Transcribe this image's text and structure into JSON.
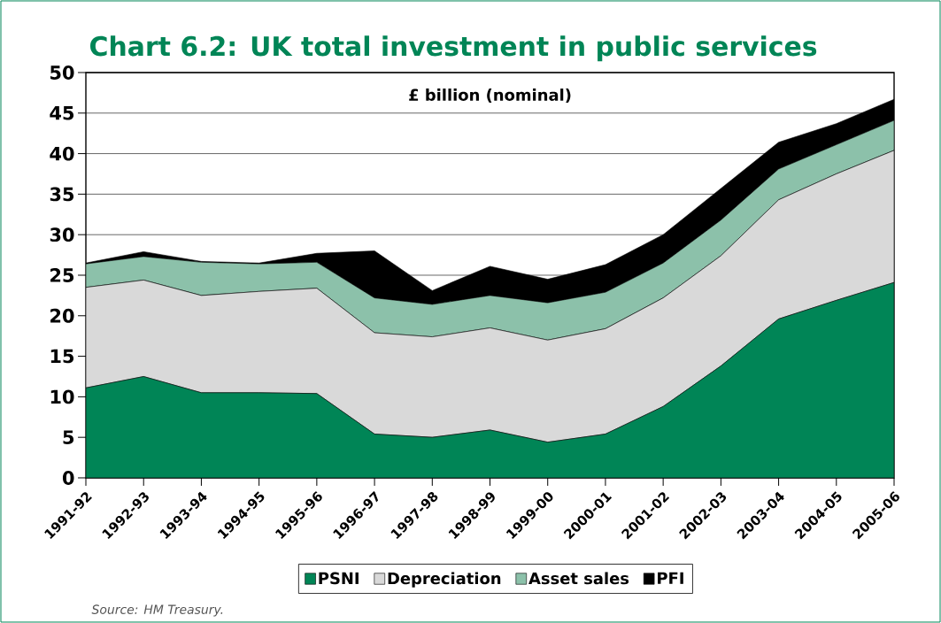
{
  "chart_data": {
    "type": "area",
    "stacked": true,
    "title": "Chart 6.2: UK total investment in public services",
    "ylabel": "£ billion (nominal)",
    "categories": [
      "1991-92",
      "1992-93",
      "1993-94",
      "1994-95",
      "1995-96",
      "1996-97",
      "1997-98",
      "1998-99",
      "1999-00",
      "2000-01",
      "2001-02",
      "2002-03",
      "2003-04",
      "2004-05",
      "2005-06"
    ],
    "series": [
      {
        "name": "PSNI",
        "color": "#008556",
        "values": [
          11.1,
          12.5,
          10.5,
          10.5,
          10.4,
          5.4,
          5.0,
          5.9,
          4.4,
          5.4,
          8.8,
          13.8,
          19.6,
          21.9,
          24.1
        ]
      },
      {
        "name": "Depreciation",
        "color": "#d9d9d9",
        "values": [
          12.4,
          11.9,
          12.0,
          12.5,
          13.0,
          12.5,
          12.4,
          12.6,
          12.6,
          13.0,
          13.4,
          13.6,
          14.7,
          15.6,
          16.3
        ]
      },
      {
        "name": "Asset sales",
        "color": "#8cc1aa",
        "values": [
          2.9,
          2.9,
          4.1,
          3.4,
          3.2,
          4.3,
          4.0,
          4.0,
          4.6,
          4.5,
          4.3,
          4.4,
          3.8,
          3.6,
          3.7
        ]
      },
      {
        "name": "PFI",
        "color": "#000000",
        "values": [
          0.1,
          0.6,
          0.1,
          0.1,
          1.1,
          5.8,
          1.7,
          3.6,
          2.9,
          3.4,
          3.5,
          3.9,
          3.3,
          2.6,
          2.6
        ]
      }
    ],
    "ylim": [
      0,
      50
    ],
    "yticks": [
      0,
      5,
      10,
      15,
      20,
      25,
      30,
      35,
      40,
      45,
      50
    ],
    "grid": "y",
    "legend": "bottom",
    "annotations": [
      "Source: HM Treasury."
    ]
  }
}
